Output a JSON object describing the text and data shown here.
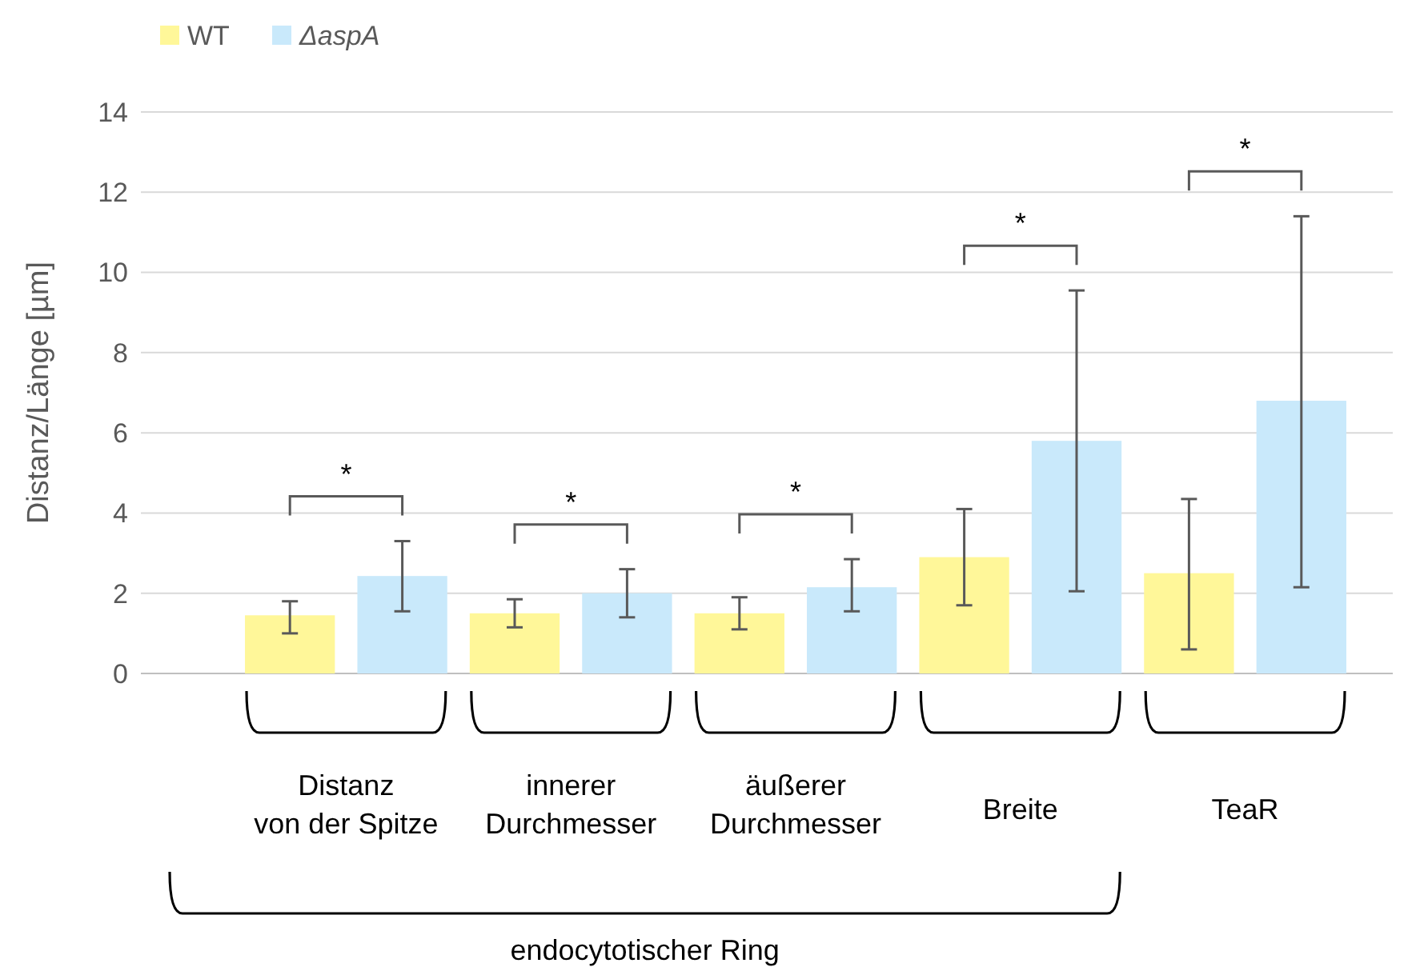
{
  "chart_data": {
    "type": "bar",
    "ylabel": "Distanz/Länge [µm]",
    "categories": [
      "Distanz\nvon der Spitze",
      "innerer\nDurchmesser",
      "äußerer\nDurchmesser",
      "Breite",
      "TeaR"
    ],
    "series": [
      {
        "name": "WT",
        "color": "#fff799",
        "values": [
          1.45,
          1.5,
          1.5,
          2.9,
          2.5
        ],
        "errors": [
          [
            1.0,
            1.8
          ],
          [
            1.15,
            1.85
          ],
          [
            1.1,
            1.9
          ],
          [
            1.7,
            4.1
          ],
          [
            0.6,
            4.35
          ]
        ]
      },
      {
        "name": "ΔaspA",
        "color": "#c9e9fb",
        "values": [
          2.43,
          2.0,
          2.15,
          5.8,
          6.8
        ],
        "errors": [
          [
            1.55,
            3.3
          ],
          [
            1.4,
            2.6
          ],
          [
            1.55,
            2.85
          ],
          [
            2.05,
            9.55
          ],
          [
            2.15,
            11.4
          ]
        ]
      }
    ],
    "ylim": [
      0,
      14
    ],
    "yticks": [
      0,
      2,
      4,
      6,
      8,
      10,
      12,
      14
    ],
    "grid": "y",
    "legend": "top left",
    "annotations": [
      "*",
      "*",
      "*",
      "*",
      "*",
      "endocytotischer Ring"
    ]
  }
}
